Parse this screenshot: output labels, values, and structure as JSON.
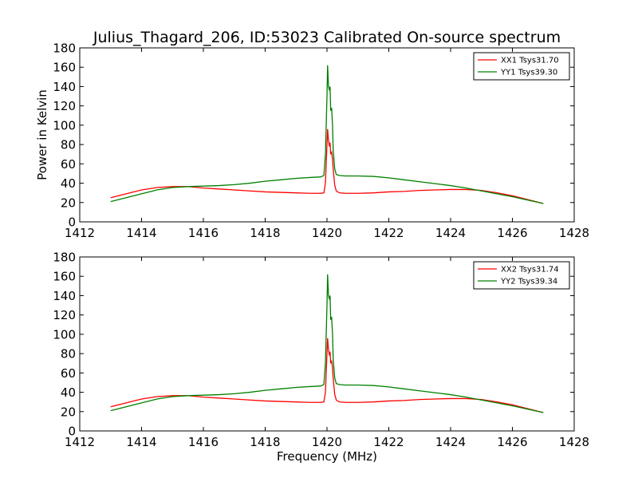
{
  "figure": {
    "title": "Julius_Thagard_206, ID:53023 Calibrated On-source spectrum"
  },
  "chart_data": [
    {
      "type": "line",
      "title": "Julius_Thagard_206, ID:53023 Calibrated On-source spectrum",
      "xlabel": "",
      "ylabel": "Power in Kelvin",
      "xlim": [
        1412,
        1428
      ],
      "ylim": [
        0,
        180
      ],
      "xticks": [
        1412,
        1414,
        1416,
        1418,
        1420,
        1422,
        1424,
        1426,
        1428
      ],
      "yticks": [
        0,
        20,
        40,
        60,
        80,
        100,
        120,
        140,
        160,
        180
      ],
      "grid": false,
      "legend": "top-right",
      "series": [
        {
          "name": "XX1 Tsys31.70",
          "color": "#ff0000",
          "x": [
            1413.0,
            1413.5,
            1414.0,
            1414.5,
            1415.0,
            1415.5,
            1416.0,
            1416.5,
            1417.0,
            1417.5,
            1418.0,
            1418.5,
            1419.0,
            1419.5,
            1419.8,
            1419.9,
            1419.95,
            1420.0,
            1420.02,
            1420.05,
            1420.08,
            1420.1,
            1420.12,
            1420.15,
            1420.18,
            1420.2,
            1420.25,
            1420.3,
            1420.4,
            1420.6,
            1421.0,
            1421.5,
            1422.0,
            1422.5,
            1423.0,
            1423.5,
            1424.0,
            1424.5,
            1425.0,
            1425.5,
            1426.0,
            1426.5,
            1427.0
          ],
          "y": [
            25,
            29,
            33,
            35.5,
            36.5,
            36.5,
            35,
            34,
            33,
            32,
            31,
            30.5,
            30,
            29.5,
            29.5,
            30,
            40,
            80,
            96,
            84,
            78,
            82,
            70,
            72,
            65,
            55,
            38,
            32,
            30,
            29.5,
            29.5,
            30,
            31,
            31.5,
            32.5,
            33,
            33.5,
            33.5,
            32.5,
            30,
            27,
            23,
            19
          ]
        },
        {
          "name": "YY1 Tsys39.30",
          "color": "#008000",
          "x": [
            1413.0,
            1413.5,
            1414.0,
            1414.5,
            1415.0,
            1415.5,
            1416.0,
            1416.5,
            1417.0,
            1417.5,
            1418.0,
            1418.5,
            1419.0,
            1419.5,
            1419.8,
            1419.9,
            1419.95,
            1420.0,
            1420.02,
            1420.05,
            1420.08,
            1420.1,
            1420.12,
            1420.15,
            1420.18,
            1420.2,
            1420.25,
            1420.3,
            1420.4,
            1420.6,
            1421.0,
            1421.5,
            1422.0,
            1422.5,
            1423.0,
            1423.5,
            1424.0,
            1424.5,
            1425.0,
            1425.5,
            1426.0,
            1426.5,
            1427.0
          ],
          "y": [
            21,
            25,
            29,
            33,
            35.5,
            36.5,
            37,
            37.5,
            38.5,
            40,
            42,
            43.5,
            45,
            46,
            46.5,
            48,
            70,
            130,
            162,
            140,
            136,
            140,
            115,
            118,
            100,
            75,
            55,
            49,
            48,
            47.5,
            47.5,
            47,
            45.5,
            43.5,
            41.5,
            39.5,
            37.5,
            35,
            32,
            29,
            26,
            22.5,
            19
          ]
        }
      ]
    },
    {
      "type": "line",
      "title": "",
      "xlabel": "Frequency (MHz)",
      "ylabel": "",
      "xlim": [
        1412,
        1428
      ],
      "ylim": [
        0,
        180
      ],
      "xticks": [
        1412,
        1414,
        1416,
        1418,
        1420,
        1422,
        1424,
        1426,
        1428
      ],
      "yticks": [
        0,
        20,
        40,
        60,
        80,
        100,
        120,
        140,
        160,
        180
      ],
      "grid": false,
      "legend": "top-right",
      "series": [
        {
          "name": "XX2 Tsys31.74",
          "color": "#ff0000",
          "x": [
            1413.0,
            1413.5,
            1414.0,
            1414.5,
            1415.0,
            1415.5,
            1416.0,
            1416.5,
            1417.0,
            1417.5,
            1418.0,
            1418.5,
            1419.0,
            1419.5,
            1419.8,
            1419.9,
            1419.95,
            1420.0,
            1420.02,
            1420.05,
            1420.08,
            1420.1,
            1420.12,
            1420.15,
            1420.18,
            1420.2,
            1420.25,
            1420.3,
            1420.4,
            1420.6,
            1421.0,
            1421.5,
            1422.0,
            1422.5,
            1423.0,
            1423.5,
            1424.0,
            1424.5,
            1425.0,
            1425.5,
            1426.0,
            1426.5,
            1427.0
          ],
          "y": [
            25,
            29,
            33,
            35.5,
            36.5,
            36.5,
            35,
            34,
            33,
            32,
            31,
            30.5,
            30,
            29.5,
            29.5,
            30,
            40,
            80,
            96,
            84,
            78,
            82,
            70,
            72,
            65,
            55,
            38,
            32,
            30,
            29.5,
            29.5,
            30,
            31,
            31.5,
            32.5,
            33,
            33.5,
            33.5,
            32.5,
            30,
            27,
            23,
            19
          ]
        },
        {
          "name": "YY2 Tsys39.34",
          "color": "#008000",
          "x": [
            1413.0,
            1413.5,
            1414.0,
            1414.5,
            1415.0,
            1415.5,
            1416.0,
            1416.5,
            1417.0,
            1417.5,
            1418.0,
            1418.5,
            1419.0,
            1419.5,
            1419.8,
            1419.9,
            1419.95,
            1420.0,
            1420.02,
            1420.05,
            1420.08,
            1420.1,
            1420.12,
            1420.15,
            1420.18,
            1420.2,
            1420.25,
            1420.3,
            1420.4,
            1420.6,
            1421.0,
            1421.5,
            1422.0,
            1422.5,
            1423.0,
            1423.5,
            1424.0,
            1424.5,
            1425.0,
            1425.5,
            1426.0,
            1426.5,
            1427.0
          ],
          "y": [
            21,
            25,
            29,
            33,
            35.5,
            36.5,
            37,
            37.5,
            38.5,
            40,
            42,
            43.5,
            45,
            46,
            46.5,
            48,
            70,
            130,
            162,
            140,
            136,
            140,
            115,
            118,
            100,
            75,
            55,
            49,
            48,
            47.5,
            47.5,
            47,
            45.5,
            43.5,
            41.5,
            39.5,
            37.5,
            35,
            32,
            29,
            26,
            22.5,
            19
          ]
        }
      ]
    }
  ]
}
